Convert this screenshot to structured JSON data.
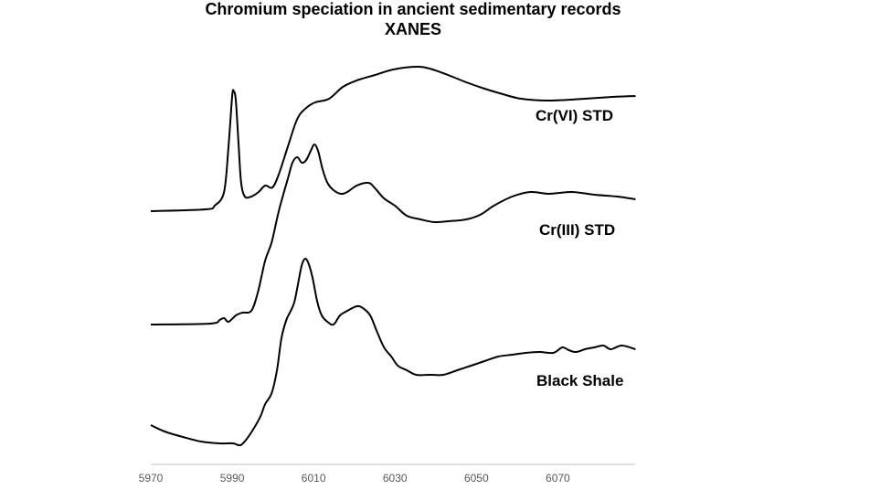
{
  "chart_data": {
    "type": "line",
    "title": "Chromium speciation in ancient sedimentary records",
    "subtitle": "XANES",
    "xlabel": "",
    "ylabel": "",
    "xlim": [
      5970,
      6089
    ],
    "ylim": [
      0,
      4.5
    ],
    "xticks": [
      5970,
      5990,
      6010,
      6030,
      6050,
      6070
    ],
    "grid": false,
    "legend": "none",
    "series": [
      {
        "name": "Cr(VI) STD",
        "color": "#000000",
        "x": [
          5970,
          5983.5,
          5985.7,
          5988.0,
          5989.1,
          5990.0,
          5990.4,
          5990.9,
          5991.6,
          5992.2,
          5993.1,
          5994.7,
          5996.5,
          5998.1,
          5999.9,
          6001.5,
          6003.7,
          6006.0,
          6008.2,
          6010.4,
          6013.8,
          6017.2,
          6020.6,
          6025.1,
          6029.6,
          6035.2,
          6038.5,
          6043.0,
          6047.5,
          6052.0,
          6056.5,
          6061.0,
          6067.8,
          6076.7,
          6083.5,
          6089.1
        ],
        "y": [
          2.74,
          2.76,
          2.8,
          2.95,
          3.45,
          4.0,
          4.05,
          3.95,
          3.45,
          3.05,
          2.9,
          2.9,
          2.95,
          3.02,
          3.0,
          3.15,
          3.45,
          3.75,
          3.87,
          3.93,
          3.97,
          4.1,
          4.17,
          4.23,
          4.29,
          4.32,
          4.3,
          4.23,
          4.15,
          4.08,
          4.02,
          3.97,
          3.95,
          3.97,
          3.99,
          4.0
        ]
      },
      {
        "name": "Cr(III) STD",
        "color": "#000000",
        "x": [
          5970,
          5984.6,
          5986.9,
          5988.0,
          5989.1,
          5990.9,
          5992.5,
          5994.7,
          5996.3,
          5998.1,
          5999.7,
          6001.5,
          6003.7,
          6004.8,
          6006.0,
          6007.1,
          6008.2,
          6009.3,
          6010.2,
          6011.1,
          6012.2,
          6013.4,
          6014.9,
          6016.7,
          6018.3,
          6020.6,
          6023.5,
          6025.1,
          6027.3,
          6030.0,
          6032.9,
          6036.3,
          6039.7,
          6043.0,
          6047.5,
          6050.9,
          6054.3,
          6058.8,
          6063.3,
          6067.8,
          6073.4,
          6079.0,
          6084.6,
          6089.1
        ],
        "y": [
          1.5,
          1.51,
          1.55,
          1.57,
          1.53,
          1.6,
          1.63,
          1.65,
          1.85,
          2.2,
          2.4,
          2.75,
          3.1,
          3.27,
          3.33,
          3.27,
          3.3,
          3.4,
          3.47,
          3.4,
          3.2,
          3.05,
          2.97,
          2.93,
          2.95,
          3.02,
          3.05,
          2.99,
          2.88,
          2.8,
          2.69,
          2.65,
          2.62,
          2.63,
          2.65,
          2.7,
          2.8,
          2.9,
          2.95,
          2.93,
          2.95,
          2.92,
          2.9,
          2.87
        ]
      },
      {
        "name": "Black Shale",
        "color": "#000000",
        "x": [
          5970,
          5973.4,
          5977.9,
          5982.4,
          5986.9,
          5990.2,
          5992.0,
          5993.6,
          5995.4,
          5997.0,
          5998.1,
          5999.7,
          6001.0,
          6002.1,
          6003.3,
          6004.4,
          6005.3,
          6006.2,
          6007.1,
          6008.0,
          6008.9,
          6009.8,
          6010.9,
          6012.0,
          6013.4,
          6014.9,
          6016.5,
          6018.3,
          6020.6,
          6022.1,
          6023.9,
          6025.5,
          6027.3,
          6029.1,
          6030.7,
          6032.9,
          6035.2,
          6038.5,
          6041.9,
          6045.3,
          6048.7,
          6052.0,
          6055.4,
          6058.8,
          6062.1,
          6065.5,
          6068.9,
          6071.1,
          6072.7,
          6074.5,
          6076.7,
          6079.0,
          6081.2,
          6083.0,
          6085.7,
          6089.1
        ],
        "y": [
          0.4,
          0.33,
          0.27,
          0.22,
          0.2,
          0.2,
          0.18,
          0.25,
          0.37,
          0.5,
          0.63,
          0.75,
          1.0,
          1.35,
          1.55,
          1.65,
          1.75,
          1.95,
          2.15,
          2.22,
          2.15,
          2.0,
          1.75,
          1.6,
          1.53,
          1.5,
          1.6,
          1.65,
          1.7,
          1.68,
          1.6,
          1.43,
          1.25,
          1.15,
          1.05,
          1.0,
          0.95,
          0.95,
          0.95,
          1.0,
          1.05,
          1.1,
          1.15,
          1.17,
          1.19,
          1.2,
          1.19,
          1.25,
          1.22,
          1.2,
          1.23,
          1.25,
          1.27,
          1.23,
          1.27,
          1.23
        ]
      }
    ],
    "annotations": [
      "Cr(VI) STD",
      "Cr(III) STD",
      "Black Shale"
    ],
    "axis_color": "#bfbfbf"
  }
}
